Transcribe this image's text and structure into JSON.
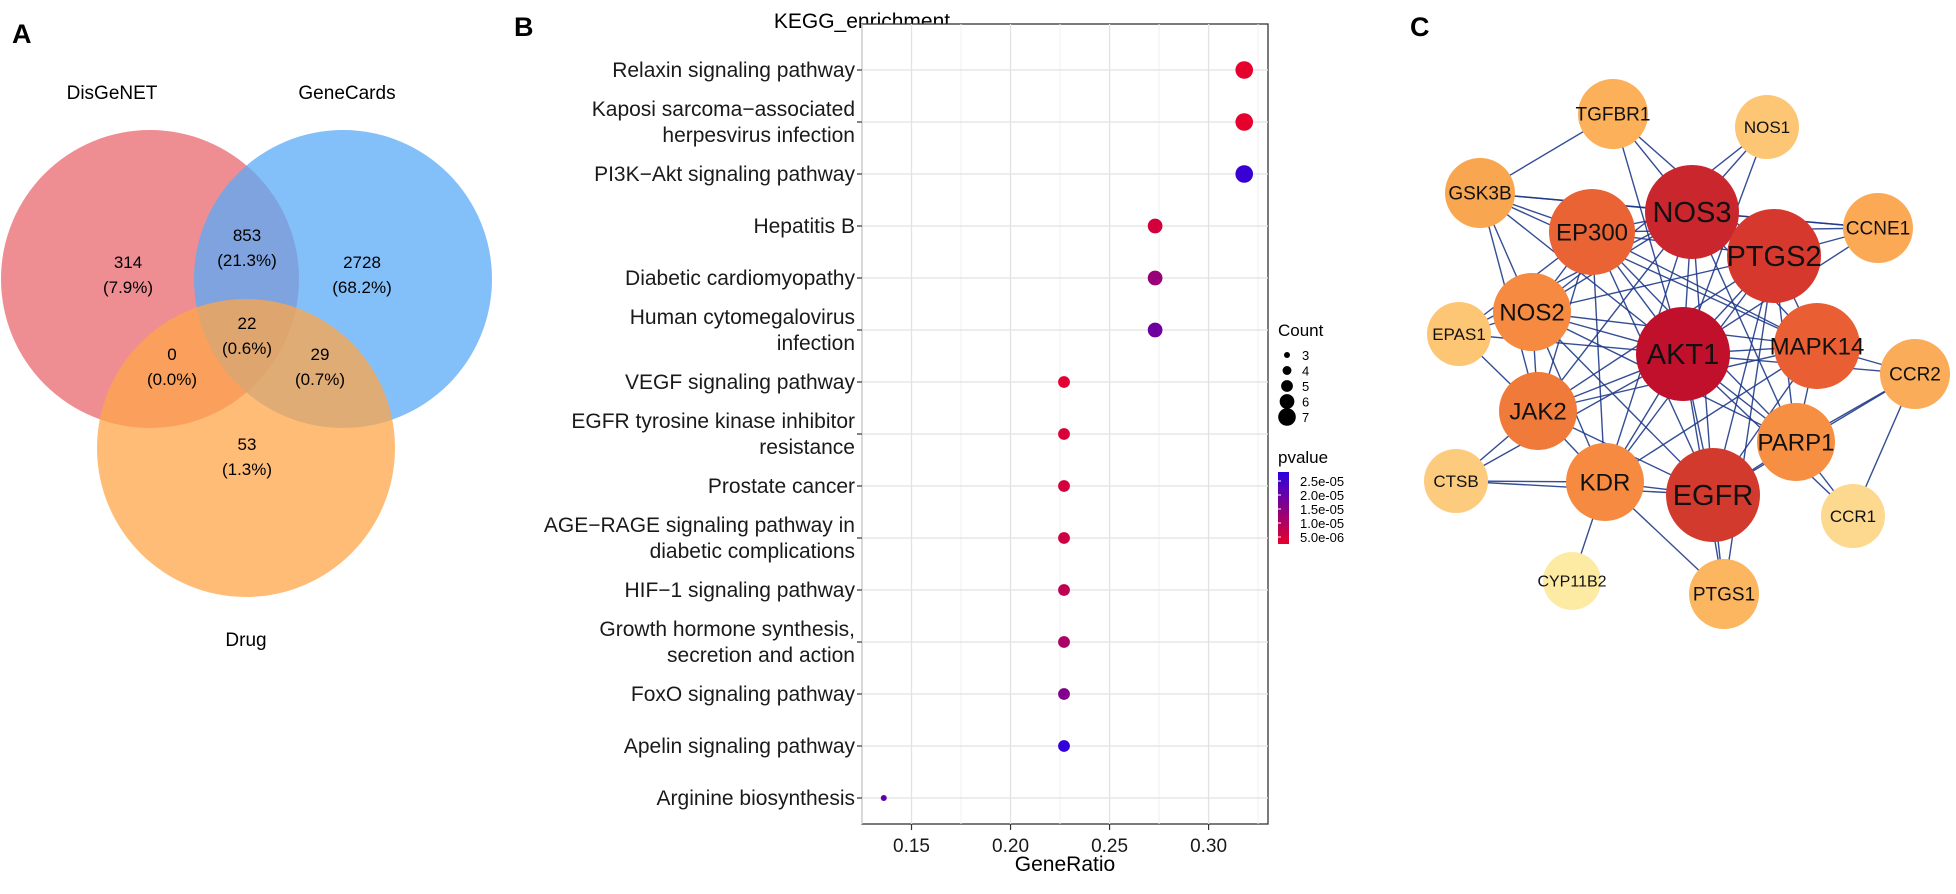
{
  "panels": {
    "a": "A",
    "b": "B",
    "c": "C"
  },
  "venn": {
    "sets": [
      {
        "name": "DisGeNET",
        "color": "#e8686f"
      },
      {
        "name": "GeneCards",
        "color": "#5aa9f7"
      },
      {
        "name": "Drug",
        "color": "#fda54a"
      }
    ],
    "regions": [
      {
        "id": "disgenet_only",
        "count": "314",
        "percent": "(7.9%)"
      },
      {
        "id": "disgenet_genecards",
        "count": "853",
        "percent": "(21.3%)"
      },
      {
        "id": "genecards_only",
        "count": "2728",
        "percent": "(68.2%)"
      },
      {
        "id": "all_three",
        "count": "22",
        "percent": "(0.6%)"
      },
      {
        "id": "disgenet_drug",
        "count": "0",
        "percent": "(0.0%)"
      },
      {
        "id": "genecards_drug",
        "count": "29",
        "percent": "(0.7%)"
      },
      {
        "id": "drug_only",
        "count": "53",
        "percent": "(1.3%)"
      }
    ]
  },
  "chart_data": {
    "type": "scatter",
    "title": "KEGG_enrichment",
    "xlabel": "GeneRatio",
    "ylabel": "",
    "xlim": [
      0.125,
      0.33
    ],
    "xticks": [
      "0.15",
      "0.20",
      "0.25",
      "0.30"
    ],
    "grid": true,
    "legend_position": "right",
    "size_legend": {
      "title": "Count",
      "values": [
        3,
        4,
        5,
        6,
        7
      ]
    },
    "color_legend": {
      "title": "pvalue",
      "labels": [
        "2.5e-05",
        "2.0e-05",
        "1.5e-05",
        "1.0e-05",
        "5.0e-06"
      ],
      "low_color": "#e8002a",
      "high_color": "#2a00e0"
    },
    "points": [
      {
        "term": [
          "Relaxin signaling pathway"
        ],
        "gene_ratio": 0.318,
        "count": 7,
        "pvalue": 3e-07
      },
      {
        "term": [
          "Kaposi sarcoma−associated",
          "herpesvirus infection"
        ],
        "gene_ratio": 0.318,
        "count": 7,
        "pvalue": 5e-07
      },
      {
        "term": [
          "PI3K−Akt signaling pathway"
        ],
        "gene_ratio": 0.318,
        "count": 7,
        "pvalue": 2.6e-05
      },
      {
        "term": [
          "Hepatitis B"
        ],
        "gene_ratio": 0.273,
        "count": 6,
        "pvalue": 3e-06
      },
      {
        "term": [
          "Diabetic cardiomyopathy"
        ],
        "gene_ratio": 0.273,
        "count": 6,
        "pvalue": 1.2e-05
      },
      {
        "term": [
          "Human cytomegalovirus",
          "infection"
        ],
        "gene_ratio": 0.273,
        "count": 6,
        "pvalue": 1.8e-05
      },
      {
        "term": [
          "VEGF signaling pathway"
        ],
        "gene_ratio": 0.227,
        "count": 5,
        "pvalue": 1e-06
      },
      {
        "term": [
          "EGFR tyrosine kinase inhibitor",
          "resistance"
        ],
        "gene_ratio": 0.227,
        "count": 5,
        "pvalue": 2e-06
      },
      {
        "term": [
          "Prostate cancer"
        ],
        "gene_ratio": 0.227,
        "count": 5,
        "pvalue": 3e-06
      },
      {
        "term": [
          "AGE−RAGE signaling pathway in",
          "diabetic complications"
        ],
        "gene_ratio": 0.227,
        "count": 5,
        "pvalue": 4e-06
      },
      {
        "term": [
          "HIF−1 signaling pathway"
        ],
        "gene_ratio": 0.227,
        "count": 5,
        "pvalue": 6e-06
      },
      {
        "term": [
          "Growth hormone synthesis,",
          "secretion and action"
        ],
        "gene_ratio": 0.227,
        "count": 5,
        "pvalue": 9e-06
      },
      {
        "term": [
          "FoxO signaling pathway"
        ],
        "gene_ratio": 0.227,
        "count": 5,
        "pvalue": 1.5e-05
      },
      {
        "term": [
          "Apelin signaling pathway"
        ],
        "gene_ratio": 0.227,
        "count": 5,
        "pvalue": 2.7e-05
      },
      {
        "term": [
          "Arginine biosynthesis"
        ],
        "gene_ratio": 0.136,
        "count": 3,
        "pvalue": 2e-05
      }
    ]
  },
  "network": {
    "nodes": [
      {
        "id": "AKT1",
        "tier": 1,
        "color": "#c0102b"
      },
      {
        "id": "NOS3",
        "tier": 1,
        "color": "#c9262d"
      },
      {
        "id": "EGFR",
        "tier": 1,
        "color": "#d23a2d"
      },
      {
        "id": "PTGS2",
        "tier": 1,
        "color": "#d7382e"
      },
      {
        "id": "MAPK14",
        "tier": 2,
        "color": "#e95e33"
      },
      {
        "id": "EP300",
        "tier": 2,
        "color": "#ea6335"
      },
      {
        "id": "JAK2",
        "tier": 3,
        "color": "#f07a3a"
      },
      {
        "id": "KDR",
        "tier": 3,
        "color": "#f58a40"
      },
      {
        "id": "NOS2",
        "tier": 3,
        "color": "#f58a40"
      },
      {
        "id": "PARP1",
        "tier": 3,
        "color": "#f68f42"
      },
      {
        "id": "GSK3B",
        "tier": 4,
        "color": "#f9a651"
      },
      {
        "id": "TGFBR1",
        "tier": 4,
        "color": "#fbb059"
      },
      {
        "id": "CCNE1",
        "tier": 4,
        "color": "#fba955"
      },
      {
        "id": "CCR2",
        "tier": 4,
        "color": "#fbac58"
      },
      {
        "id": "PTGS1",
        "tier": 4,
        "color": "#fbb65f"
      },
      {
        "id": "NOS1",
        "tier": 5,
        "color": "#fdc675"
      },
      {
        "id": "EPAS1",
        "tier": 5,
        "color": "#fdc675"
      },
      {
        "id": "CTSB",
        "tier": 5,
        "color": "#fdcb7d"
      },
      {
        "id": "CCR1",
        "tier": 5,
        "color": "#fdd98f"
      },
      {
        "id": "CYP11B2",
        "tier": 6,
        "color": "#feeba3"
      }
    ],
    "edge_color": "#1f3a8a",
    "edges": [
      [
        "AKT1",
        "NOS3"
      ],
      [
        "AKT1",
        "EGFR"
      ],
      [
        "AKT1",
        "PTGS2"
      ],
      [
        "AKT1",
        "MAPK14"
      ],
      [
        "AKT1",
        "EP300"
      ],
      [
        "AKT1",
        "JAK2"
      ],
      [
        "AKT1",
        "KDR"
      ],
      [
        "AKT1",
        "NOS2"
      ],
      [
        "AKT1",
        "PARP1"
      ],
      [
        "AKT1",
        "GSK3B"
      ],
      [
        "AKT1",
        "TGFBR1"
      ],
      [
        "AKT1",
        "CCNE1"
      ],
      [
        "AKT1",
        "CCR2"
      ],
      [
        "AKT1",
        "PTGS1"
      ],
      [
        "AKT1",
        "NOS1"
      ],
      [
        "AKT1",
        "EPAS1"
      ],
      [
        "AKT1",
        "CTSB"
      ],
      [
        "AKT1",
        "CCR1"
      ],
      [
        "NOS3",
        "EGFR"
      ],
      [
        "NOS3",
        "PTGS2"
      ],
      [
        "NOS3",
        "MAPK14"
      ],
      [
        "NOS3",
        "EP300"
      ],
      [
        "NOS3",
        "JAK2"
      ],
      [
        "NOS3",
        "KDR"
      ],
      [
        "NOS3",
        "NOS2"
      ],
      [
        "NOS3",
        "PARP1"
      ],
      [
        "NOS3",
        "GSK3B"
      ],
      [
        "NOS3",
        "TGFBR1"
      ],
      [
        "NOS3",
        "NOS1"
      ],
      [
        "NOS3",
        "CCNE1"
      ],
      [
        "NOS3",
        "EPAS1"
      ],
      [
        "EGFR",
        "PTGS2"
      ],
      [
        "EGFR",
        "MAPK14"
      ],
      [
        "EGFR",
        "EP300"
      ],
      [
        "EGFR",
        "JAK2"
      ],
      [
        "EGFR",
        "KDR"
      ],
      [
        "EGFR",
        "PARP1"
      ],
      [
        "EGFR",
        "NOS2"
      ],
      [
        "EGFR",
        "PTGS1"
      ],
      [
        "EGFR",
        "CTSB"
      ],
      [
        "EGFR",
        "CCR2"
      ],
      [
        "PTGS2",
        "MAPK14"
      ],
      [
        "PTGS2",
        "EP300"
      ],
      [
        "PTGS2",
        "JAK2"
      ],
      [
        "PTGS2",
        "NOS2"
      ],
      [
        "PTGS2",
        "PARP1"
      ],
      [
        "PTGS2",
        "CCNE1"
      ],
      [
        "PTGS2",
        "TGFBR1"
      ],
      [
        "PTGS2",
        "KDR"
      ],
      [
        "MAPK14",
        "EP300"
      ],
      [
        "MAPK14",
        "JAK2"
      ],
      [
        "MAPK14",
        "PARP1"
      ],
      [
        "MAPK14",
        "CCR2"
      ],
      [
        "MAPK14",
        "KDR"
      ],
      [
        "MAPK14",
        "NOS2"
      ],
      [
        "MAPK14",
        "GSK3B"
      ],
      [
        "EP300",
        "JAK2"
      ],
      [
        "EP300",
        "GSK3B"
      ],
      [
        "EP300",
        "NOS2"
      ],
      [
        "EP300",
        "EPAS1"
      ],
      [
        "EP300",
        "CCNE1"
      ],
      [
        "EP300",
        "KDR"
      ],
      [
        "EP300",
        "PARP1"
      ],
      [
        "JAK2",
        "KDR"
      ],
      [
        "JAK2",
        "EPAS1"
      ],
      [
        "JAK2",
        "CTSB"
      ],
      [
        "JAK2",
        "NOS2"
      ],
      [
        "JAK2",
        "GSK3B"
      ],
      [
        "KDR",
        "CYP11B2"
      ],
      [
        "KDR",
        "CTSB"
      ],
      [
        "KDR",
        "PTGS1"
      ],
      [
        "KDR",
        "NOS2"
      ],
      [
        "NOS2",
        "GSK3B"
      ],
      [
        "NOS2",
        "EPAS1"
      ],
      [
        "NOS2",
        "PARP1"
      ],
      [
        "PARP1",
        "CCR1"
      ],
      [
        "PARP1",
        "CCR2"
      ],
      [
        "CCR1",
        "CCR2"
      ],
      [
        "PTGS2",
        "PTGS1"
      ],
      [
        "TGFBR1",
        "GSK3B"
      ],
      [
        "NOS1",
        "NOS2"
      ],
      [
        "GSK3B",
        "CCNE1"
      ]
    ]
  }
}
